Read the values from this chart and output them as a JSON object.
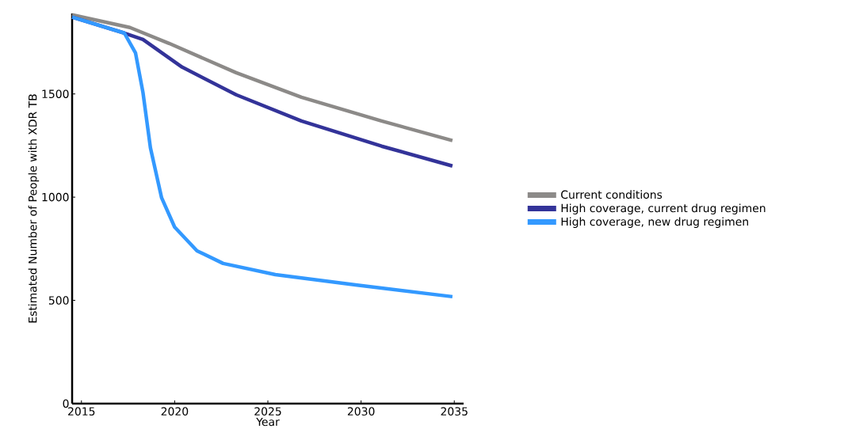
{
  "chart_data": {
    "type": "line",
    "xlabel": "Year",
    "ylabel": "Estimated Number of People with XDR TB",
    "xlim": [
      2014.5,
      2035.5
    ],
    "ylim": [
      0,
      1890
    ],
    "xticks": [
      2015,
      2020,
      2025,
      2030,
      2035
    ],
    "yticks": [
      0,
      500,
      1000,
      1500
    ],
    "grid": false,
    "legend": "right",
    "marker": "none",
    "line_style": "solid",
    "series": [
      {
        "name": "Current conditions",
        "color": "#8c8a88",
        "x": [
          2014.5,
          2017.6,
          2019.7,
          2023.3,
          2026.8,
          2031.1,
          2034.9
        ],
        "values": [
          1883,
          1822,
          1745,
          1603,
          1484,
          1369,
          1274
        ]
      },
      {
        "name": "High coverage, current drug regimen",
        "color": "#333399",
        "x": [
          2014.5,
          2017.3,
          2018.3,
          2020.4,
          2023.3,
          2026.8,
          2031.1,
          2034.9
        ],
        "values": [
          1872,
          1795,
          1764,
          1630,
          1496,
          1369,
          1247,
          1151
        ]
      },
      {
        "name": "High coverage, new drug regimen",
        "color": "#3399ff",
        "x": [
          2014.5,
          2017.3,
          2017.9,
          2018.3,
          2018.7,
          2019.3,
          2020.0,
          2021.2,
          2022.6,
          2025.4,
          2029.7,
          2034.9
        ],
        "values": [
          1872,
          1795,
          1699,
          1507,
          1239,
          997,
          855,
          740,
          679,
          625,
          575,
          518
        ]
      }
    ]
  }
}
